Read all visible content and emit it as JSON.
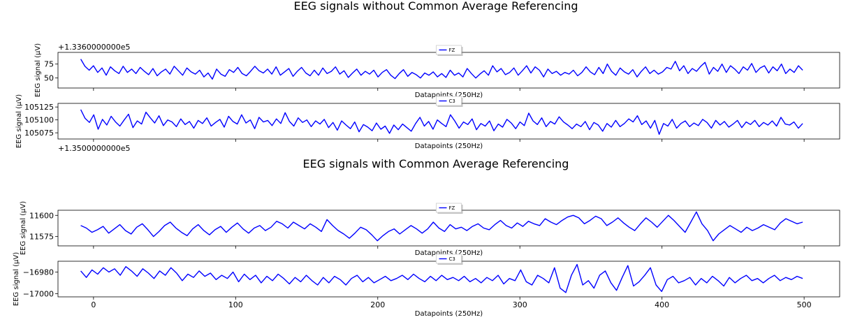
{
  "figure": {
    "titles": [
      "EEG signals without Common Average Referencing",
      "EEG signals with Common Average Referencing"
    ]
  },
  "chart_data": [
    {
      "type": "line",
      "figure_title": "EEG signals without Common Average Referencing",
      "axis_offset": "+1.3360000000e5",
      "xlabel": "Datapoints (250Hz)",
      "ylabel": "EEG signal (μV)",
      "xlim": [
        -25,
        525
      ],
      "ylim": [
        32,
        96
      ],
      "yticks": [
        50,
        75
      ],
      "series": [
        {
          "name": "FZ",
          "color": "#0000ff",
          "x_start": -9,
          "x_end": 499,
          "values": [
            84,
            71,
            64,
            72,
            60,
            68,
            55,
            70,
            63,
            58,
            71,
            60,
            66,
            58,
            69,
            62,
            56,
            67,
            54,
            61,
            66,
            57,
            71,
            63,
            55,
            68,
            61,
            57,
            64,
            52,
            59,
            48,
            66,
            57,
            53,
            65,
            60,
            69,
            58,
            54,
            62,
            71,
            63,
            59,
            66,
            57,
            70,
            55,
            61,
            67,
            53,
            62,
            69,
            59,
            54,
            64,
            55,
            68,
            58,
            62,
            70,
            57,
            63,
            51,
            59,
            66,
            55,
            62,
            57,
            64,
            52,
            60,
            65,
            55,
            49,
            58,
            65,
            53,
            60,
            56,
            50,
            59,
            55,
            61,
            52,
            58,
            51,
            64,
            55,
            59,
            52,
            67,
            58,
            50,
            57,
            63,
            55,
            72,
            61,
            67,
            56,
            60,
            68,
            55,
            63,
            72,
            59,
            70,
            64,
            52,
            66,
            58,
            62,
            55,
            60,
            57,
            64,
            54,
            60,
            70,
            61,
            56,
            69,
            58,
            75,
            62,
            55,
            68,
            61,
            57,
            65,
            52,
            62,
            70,
            58,
            64,
            57,
            61,
            69,
            66,
            80,
            63,
            72,
            58,
            67,
            62,
            71,
            78,
            57,
            69,
            62,
            75,
            60,
            72,
            66,
            58,
            70,
            64,
            76,
            60,
            68,
            72,
            59,
            70,
            63,
            75,
            58,
            66,
            60,
            72,
            64
          ]
        }
      ]
    },
    {
      "type": "line",
      "figure_title": "EEG signals without Common Average Referencing",
      "axis_offset": "+1.3500000000e5",
      "xlabel": "Datapoints (250Hz)",
      "ylabel": "EEG signal (μV)",
      "xlim": [
        -25,
        525
      ],
      "ylim": [
        105063,
        105132
      ],
      "yticks": [
        105075,
        105100,
        105125
      ],
      "series": [
        {
          "name": "C3",
          "color": "#0000ff",
          "x_start": -9,
          "x_end": 499,
          "values": [
            105120,
            105103,
            105095,
            105110,
            105082,
            105101,
            105090,
            105107,
            105096,
            105088,
            105100,
            105111,
            105085,
            105098,
            105092,
            105115,
            105104,
            105094,
            105108,
            105089,
            105100,
            105096,
            105087,
            105102,
            105091,
            105097,
            105084,
            105099,
            105093,
            105104,
            105088,
            105095,
            105101,
            105086,
            105107,
            105097,
            105092,
            105110,
            105094,
            105100,
            105083,
            105105,
            105096,
            105099,
            105089,
            105102,
            105093,
            105114,
            105097,
            105088,
            105104,
            105095,
            105100,
            105087,
            105098,
            105092,
            105101,
            105085,
            105095,
            105080,
            105098,
            105090,
            105083,
            105096,
            105077,
            105091,
            105086,
            105079,
            105094,
            105082,
            105088,
            105074,
            105090,
            105081,
            105092,
            105085,
            105078,
            105093,
            105105,
            105088,
            105097,
            105082,
            105100,
            105093,
            105087,
            105110,
            105098,
            105084,
            105096,
            105091,
            105102,
            105081,
            105093,
            105088,
            105098,
            105079,
            105092,
            105086,
            105101,
            105094,
            105083,
            105096,
            105089,
            105113,
            105098,
            105091,
            105104,
            105087,
            105097,
            105092,
            105106,
            105096,
            105090,
            105083,
            105092,
            105087,
            105097,
            105081,
            105095,
            105090,
            105078,
            105093,
            105086,
            105099,
            105087,
            105093,
            105102,
            105096,
            105108,
            105091,
            105098,
            105084,
            105099,
            105072,
            105093,
            105088,
            105101,
            105084,
            105093,
            105098,
            105087,
            105094,
            105089,
            105101,
            105095,
            105084,
            105099,
            105090,
            105097,
            105086,
            105092,
            105099,
            105085,
            105096,
            105091,
            105099,
            105087,
            105095,
            105090,
            105098,
            105088,
            105105,
            105092,
            105090,
            105096,
            105084,
            105093
          ]
        }
      ]
    },
    {
      "type": "line",
      "figure_title": "EEG signals with Common Average Referencing",
      "xlabel": "Datapoints (250Hz)",
      "ylabel": "EEG signal (μV)",
      "xlim": [
        -25,
        525
      ],
      "ylim": [
        11564,
        11606
      ],
      "yticks": [
        11575,
        11600
      ],
      "series": [
        {
          "name": "FZ",
          "color": "#0000ff",
          "x_start": -9,
          "x_end": 499,
          "values": [
            11588,
            11585,
            11580,
            11583,
            11587,
            11579,
            11584,
            11589,
            11582,
            11578,
            11586,
            11590,
            11583,
            11575,
            11581,
            11588,
            11592,
            11585,
            11580,
            11576,
            11584,
            11589,
            11582,
            11577,
            11583,
            11587,
            11580,
            11586,
            11591,
            11584,
            11579,
            11585,
            11588,
            11582,
            11586,
            11593,
            11590,
            11585,
            11592,
            11588,
            11584,
            11590,
            11586,
            11581,
            11595,
            11588,
            11582,
            11578,
            11573,
            11579,
            11586,
            11583,
            11577,
            11570,
            11576,
            11581,
            11584,
            11578,
            11583,
            11588,
            11584,
            11579,
            11584,
            11592,
            11585,
            11581,
            11589,
            11584,
            11586,
            11582,
            11587,
            11590,
            11585,
            11583,
            11589,
            11594,
            11588,
            11585,
            11591,
            11587,
            11593,
            11590,
            11588,
            11596,
            11592,
            11589,
            11594,
            11598,
            11600,
            11597,
            11590,
            11594,
            11599,
            11596,
            11588,
            11592,
            11597,
            11591,
            11586,
            11582,
            11590,
            11597,
            11592,
            11586,
            11593,
            11600,
            11594,
            11587,
            11580,
            11592,
            11604,
            11590,
            11582,
            11570,
            11578,
            11583,
            11588,
            11584,
            11580,
            11586,
            11582,
            11585,
            11589,
            11586,
            11583,
            11591,
            11596,
            11593,
            11590,
            11592
          ]
        }
      ]
    },
    {
      "type": "line",
      "figure_title": "EEG signals with Common Average Referencing",
      "xlabel": "Datapoints (250Hz)",
      "ylabel": "EEG signal (μV)",
      "xlim": [
        -25,
        525
      ],
      "ylim": [
        -17003,
        -16970
      ],
      "yticks": [
        -16980,
        -17000
      ],
      "series": [
        {
          "name": "C3",
          "color": "#0000ff",
          "x_start": -9,
          "x_end": 499,
          "values": [
            -16979,
            -16985,
            -16978,
            -16982,
            -16976,
            -16980,
            -16977,
            -16983,
            -16975,
            -16979,
            -16984,
            -16977,
            -16981,
            -16986,
            -16979,
            -16983,
            -16976,
            -16981,
            -16988,
            -16982,
            -16985,
            -16979,
            -16984,
            -16981,
            -16987,
            -16983,
            -16986,
            -16980,
            -16989,
            -16982,
            -16987,
            -16983,
            -16990,
            -16984,
            -16988,
            -16982,
            -16986,
            -16991,
            -16985,
            -16989,
            -16983,
            -16988,
            -16992,
            -16985,
            -16990,
            -16984,
            -16987,
            -16992,
            -16986,
            -16983,
            -16989,
            -16985,
            -16990,
            -16987,
            -16984,
            -16988,
            -16986,
            -16983,
            -16987,
            -16982,
            -16986,
            -16989,
            -16984,
            -16988,
            -16983,
            -16987,
            -16985,
            -16988,
            -16984,
            -16989,
            -16986,
            -16990,
            -16985,
            -16988,
            -16983,
            -16991,
            -16986,
            -16988,
            -16978,
            -16989,
            -16992,
            -16983,
            -16986,
            -16990,
            -16976,
            -16995,
            -16999,
            -16983,
            -16973,
            -16992,
            -16988,
            -16995,
            -16983,
            -16979,
            -16990,
            -16997,
            -16985,
            -16974,
            -16993,
            -16989,
            -16983,
            -16976,
            -16992,
            -16998,
            -16987,
            -16984,
            -16990,
            -16988,
            -16985,
            -16992,
            -16986,
            -16990,
            -16984,
            -16988,
            -16993,
            -16985,
            -16990,
            -16986,
            -16983,
            -16988,
            -16986,
            -16990,
            -16986,
            -16983,
            -16988,
            -16985,
            -16987,
            -16984,
            -16986
          ]
        }
      ]
    }
  ]
}
